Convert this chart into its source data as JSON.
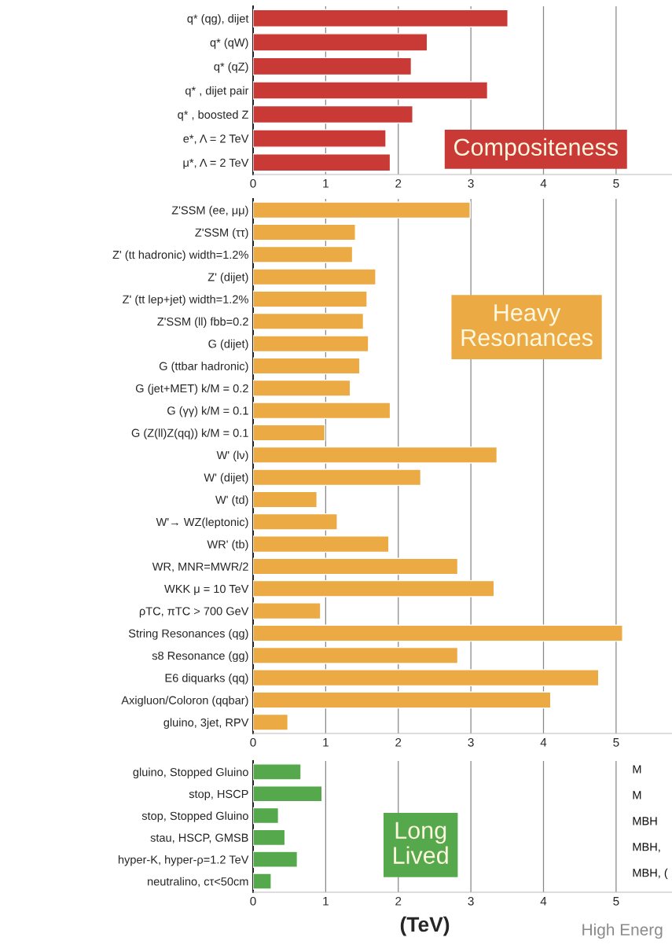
{
  "chart_data": [
    {
      "type": "bar",
      "orientation": "horizontal",
      "categories": [
        "q* (qg), dijet",
        "q* (qW)",
        "q* (qZ)",
        "q* , dijet pair",
        "q* , boosted Z",
        "e*, Λ = 2 TeV",
        "μ*, Λ = 2 TeV"
      ],
      "values": [
        3.51,
        2.4,
        2.18,
        3.23,
        2.2,
        1.83,
        1.89
      ],
      "color": "#c93a36",
      "xlim": [
        0,
        5.77
      ],
      "xticks": [
        0,
        1,
        2,
        3,
        4,
        5
      ],
      "grid": "x",
      "annotations": [
        "Compositeness"
      ]
    },
    {
      "type": "bar",
      "orientation": "horizontal",
      "categories": [
        "Z'SSM (ee, μμ)",
        "Z'SSM (ττ)",
        "Z' (tt hadronic) width=1.2%",
        "Z' (dijet)",
        "Z' (tt lep+jet) width=1.2%",
        "Z'SSM (ll) fbb=0.2",
        "G (dijet)",
        "G (ttbar hadronic)",
        "G (jet+MET) k/M = 0.2",
        "G (γγ) k/M = 0.1",
        "G (Z(ll)Z(qq)) k/M = 0.1",
        "W' (lν)",
        "W' (dijet)",
        "W' (td)",
        "W'→ WZ(leptonic)",
        "WR' (tb)",
        "WR, MNR=MWR/2",
        "WKK μ = 10 TeV",
        "ρTC, πTC > 700 GeV",
        "String Resonances (qg)",
        "s8 Resonance (gg)",
        "E6 diquarks (qq)",
        "Axigluon/Coloron (qqbar)",
        "gluino, 3jet, RPV"
      ],
      "values": [
        2.99,
        1.41,
        1.37,
        1.69,
        1.57,
        1.52,
        1.59,
        1.47,
        1.34,
        1.89,
        0.99,
        3.36,
        2.31,
        0.88,
        1.16,
        1.87,
        2.82,
        3.32,
        0.93,
        5.09,
        2.82,
        4.76,
        4.1,
        0.48
      ],
      "color": "#ecaa45",
      "xlim": [
        0,
        5.77
      ],
      "xticks": [
        0,
        1,
        2,
        3,
        4,
        5
      ],
      "grid": "x",
      "annotations": [
        "Heavy\nResonances"
      ]
    },
    {
      "type": "bar",
      "orientation": "horizontal",
      "categories": [
        "gluino, Stopped Gluino",
        "stop, HSCP",
        "stop, Stopped Gluino",
        "stau, HSCP, GMSB",
        "hyper-K, hyper-ρ=1.2 TeV",
        "neutralino, cτ<50cm"
      ],
      "values": [
        0.66,
        0.95,
        0.35,
        0.44,
        0.61,
        0.25
      ],
      "color": "#55a84b",
      "xlim": [
        0,
        5.77
      ],
      "xticks": [
        0,
        1,
        2,
        3,
        4,
        5
      ],
      "grid": "x",
      "xlabel": "(TeV)",
      "annotations": [
        "Long\nLived",
        "M",
        "M",
        "MBH",
        "MBH,",
        "MBH, (",
        "High Energ"
      ]
    }
  ]
}
